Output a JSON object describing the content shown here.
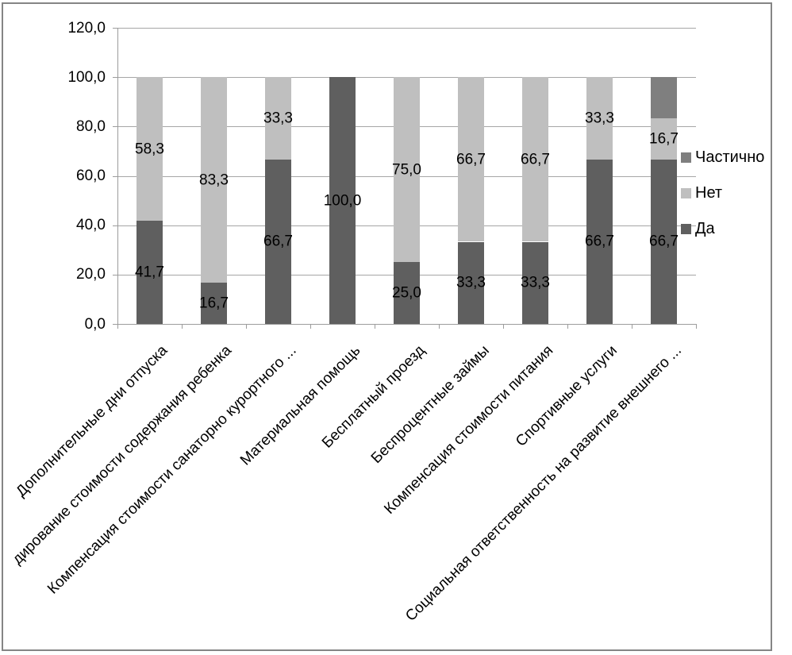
{
  "chart_data": {
    "type": "bar",
    "stacked": true,
    "title": "",
    "xlabel": "",
    "ylabel": "",
    "categories": [
      "Дополнительные дни отпуска",
      "дирование стоимости содержания ребенка",
      "Компенсация стоимости санаторно курортного ...",
      "Материальная помощь",
      "Бесплатный проезд",
      "Беспроцентные займы",
      "Компенсация стоимости питания",
      "Спортивные услуги",
      "Социальная ответственность на развитие внешнего ..."
    ],
    "series": [
      {
        "name": "Да",
        "color": "#5f5f5f",
        "values": [
          41.7,
          16.7,
          66.7,
          100.0,
          25.0,
          33.3,
          33.3,
          66.7,
          66.7
        ]
      },
      {
        "name": "Нет",
        "color": "#bfbfbf",
        "values": [
          58.3,
          83.3,
          33.3,
          0.0,
          75.0,
          66.7,
          66.7,
          33.3,
          16.7
        ]
      },
      {
        "name": "Частично",
        "color": "#7f7f7f",
        "values": [
          0.0,
          0.0,
          0.0,
          0.0,
          0.0,
          0.0,
          0.0,
          0.0,
          16.7
        ]
      }
    ],
    "data_labels": [
      [
        "41,7",
        "16,7",
        "66,7",
        "100,0",
        "25,0",
        "33,3",
        "33,3",
        "66,7",
        "66,7"
      ],
      [
        "58,3",
        "83,3",
        "33,3",
        null,
        "75,0",
        "66,7",
        "66,7",
        "33,3",
        "16,7"
      ],
      [
        null,
        null,
        null,
        null,
        null,
        null,
        null,
        null,
        null
      ]
    ],
    "y_axis": {
      "min": 0,
      "max": 120,
      "step": 20,
      "tick_labels": [
        "0,0",
        "20,0",
        "40,0",
        "60,0",
        "80,0",
        "100,0",
        "120,0"
      ]
    },
    "legend": {
      "position": "right",
      "items": [
        {
          "label": "Частично",
          "color": "#7f7f7f"
        },
        {
          "label": "Нет",
          "color": "#bfbfbf"
        },
        {
          "label": "Да",
          "color": "#5f5f5f"
        }
      ]
    },
    "grid": true
  },
  "colors": {
    "background": "#ffffff",
    "gridline": "#a6a6a6",
    "axis": "#9c9c9c",
    "border": "#858585",
    "text": "#000000"
  }
}
